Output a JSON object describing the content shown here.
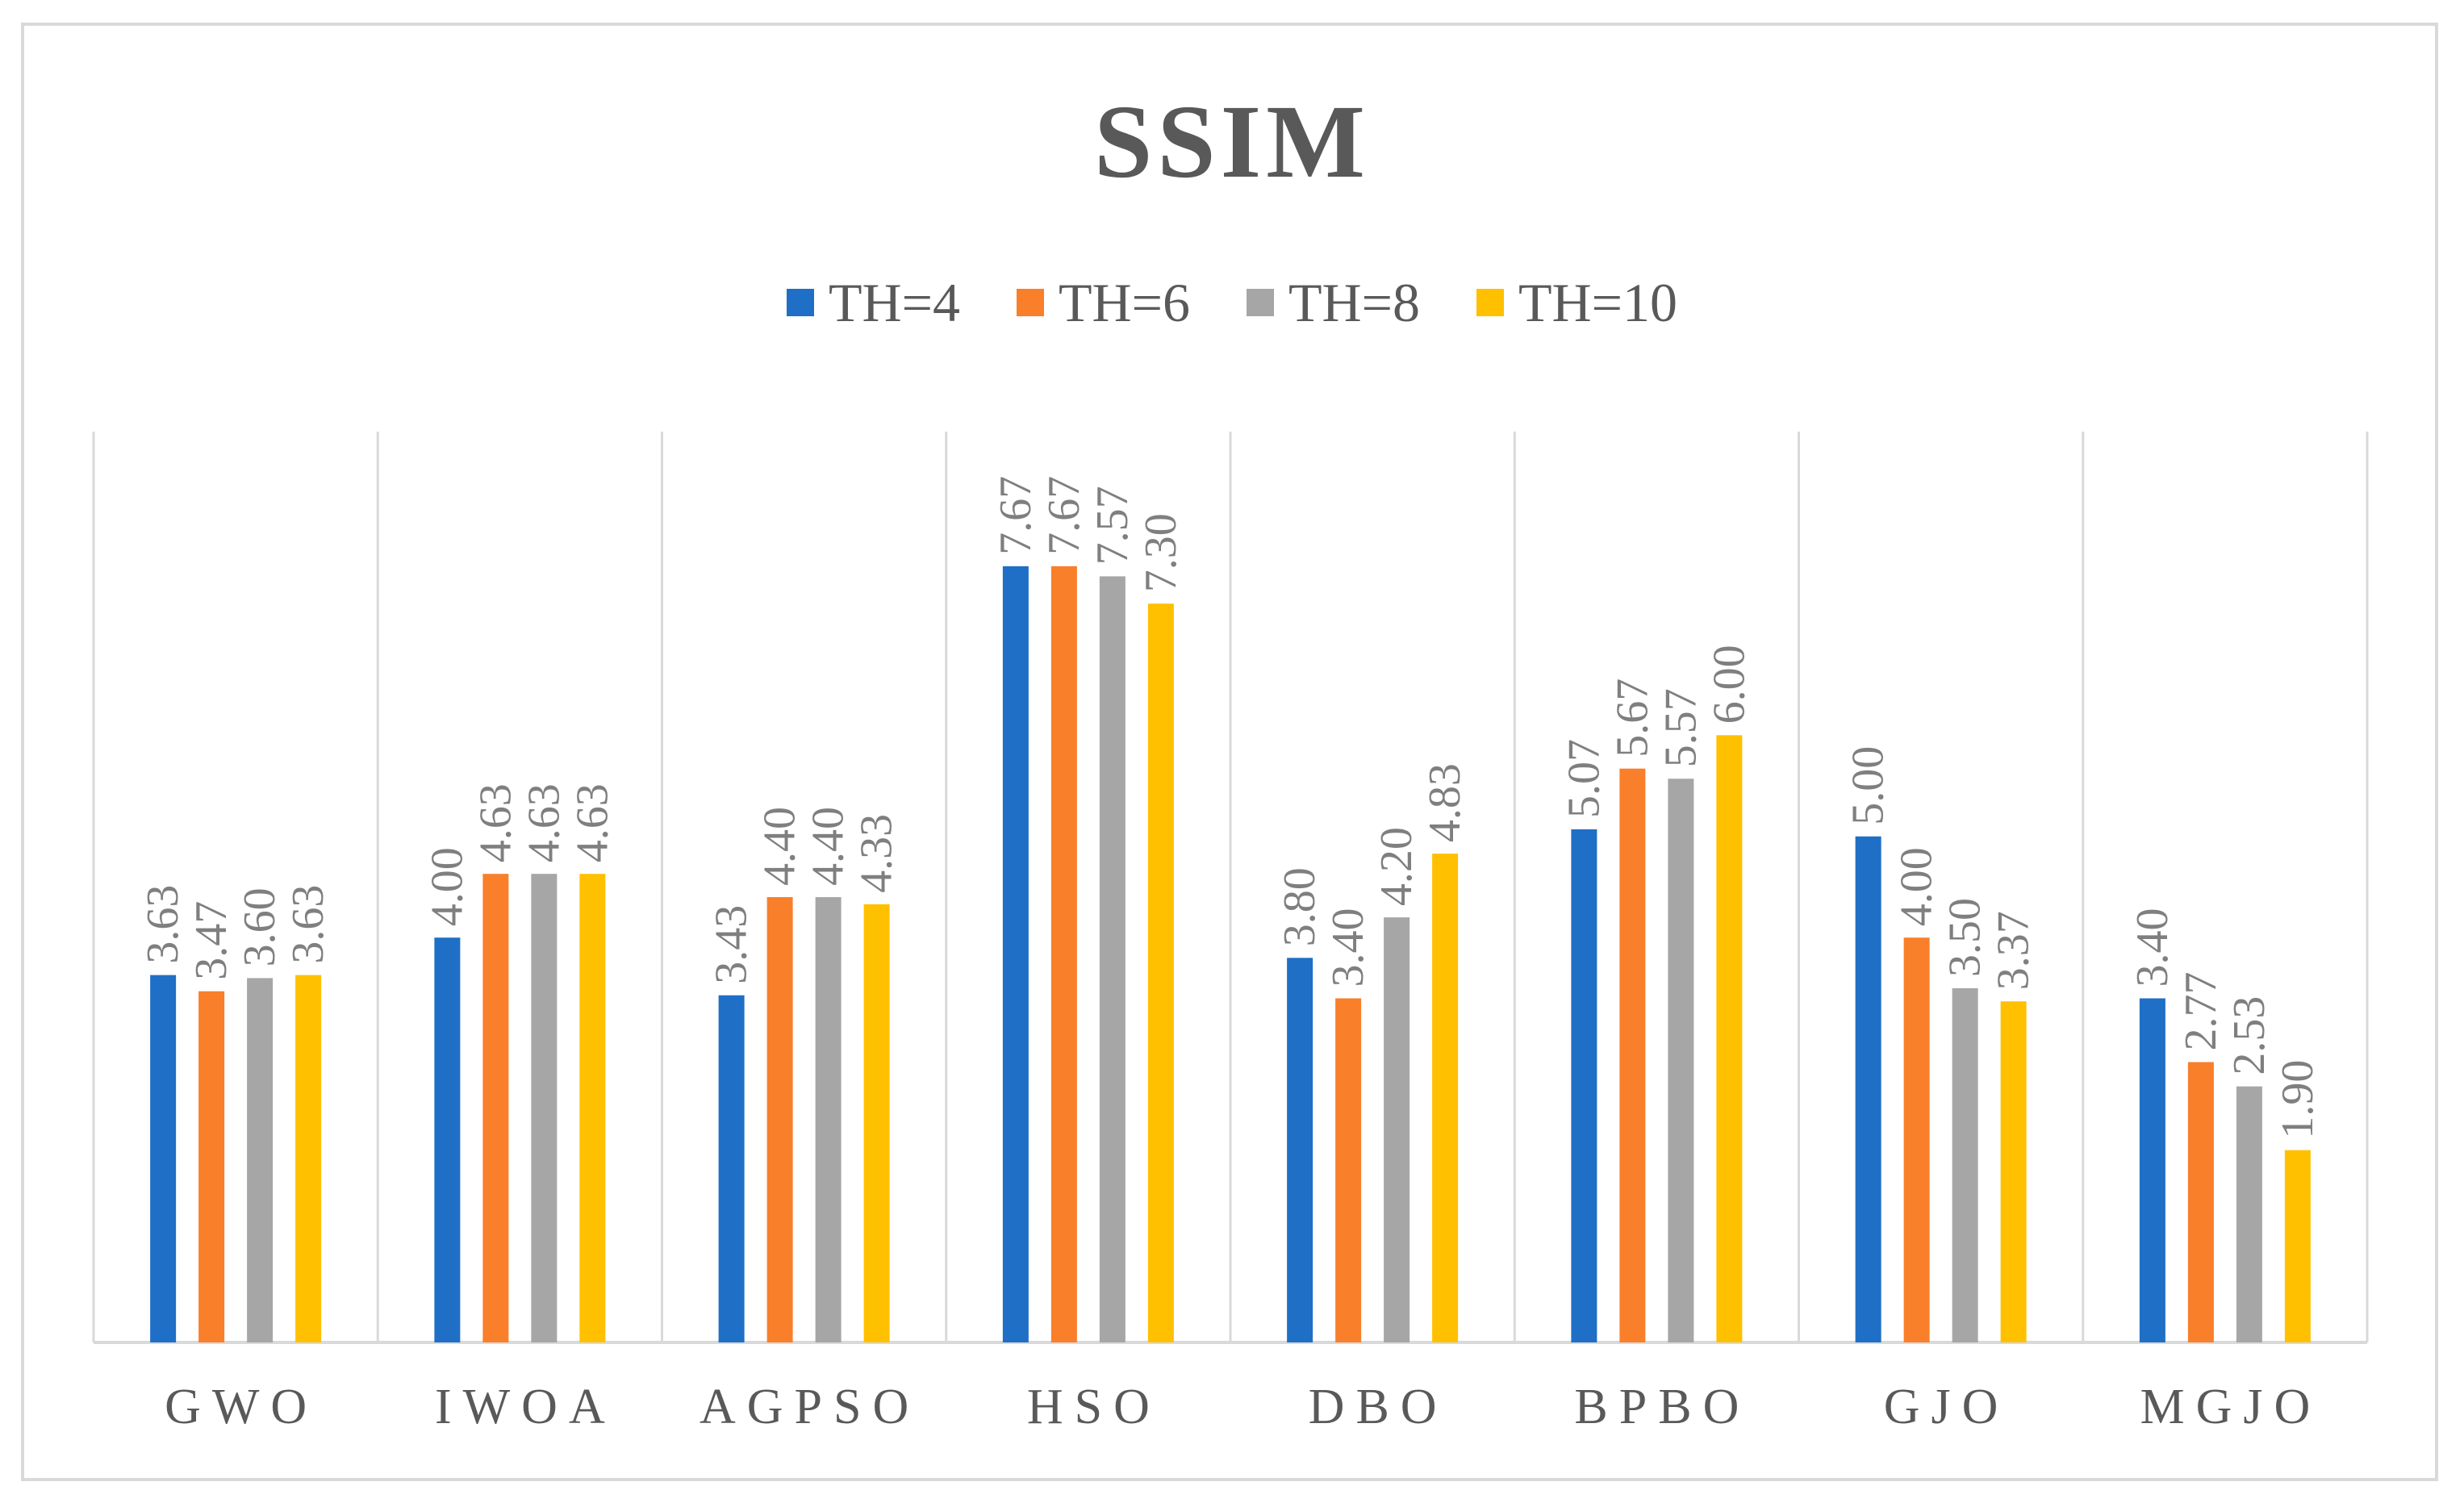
{
  "chart_data": {
    "type": "bar",
    "title": "SSIM",
    "xlabel": "",
    "ylabel": "",
    "ylim": [
      0,
      9
    ],
    "grid": "vertical-category-separators",
    "legend_position": "top-center",
    "categories": [
      "GWO",
      "IWOA",
      "AGPSO",
      "HSO",
      "DBO",
      "BPBO",
      "GJO",
      "MGJO"
    ],
    "series": [
      {
        "name": "TH=4",
        "color": "#1f6fc6",
        "values": [
          3.63,
          4.0,
          3.43,
          7.67,
          3.8,
          5.07,
          5.0,
          3.4
        ]
      },
      {
        "name": "TH=6",
        "color": "#f97f2a",
        "values": [
          3.47,
          4.63,
          4.4,
          7.67,
          3.4,
          5.67,
          4.0,
          2.77
        ]
      },
      {
        "name": "TH=8",
        "color": "#a6a6a6",
        "values": [
          3.6,
          4.63,
          4.4,
          7.57,
          4.2,
          5.57,
          3.5,
          2.53
        ]
      },
      {
        "name": "TH=10",
        "color": "#ffc000",
        "values": [
          3.63,
          4.63,
          4.33,
          7.3,
          4.83,
          6.0,
          3.37,
          1.9
        ]
      }
    ],
    "data_labels": [
      [
        "3.63",
        "4.00",
        "3.43",
        "7.67",
        "3.80",
        "5.07",
        "5.00",
        "3.40"
      ],
      [
        "3.47",
        "4.63",
        "4.40",
        "7.67",
        "3.40",
        "5.67",
        "4.00",
        "2.77"
      ],
      [
        "3.60",
        "4.63",
        "4.40",
        "7.57",
        "4.20",
        "5.57",
        "3.50",
        "2.53"
      ],
      [
        "3.63",
        "4.63",
        "4.33",
        "7.30",
        "4.83",
        "6.00",
        "3.37",
        "1.90"
      ]
    ]
  }
}
